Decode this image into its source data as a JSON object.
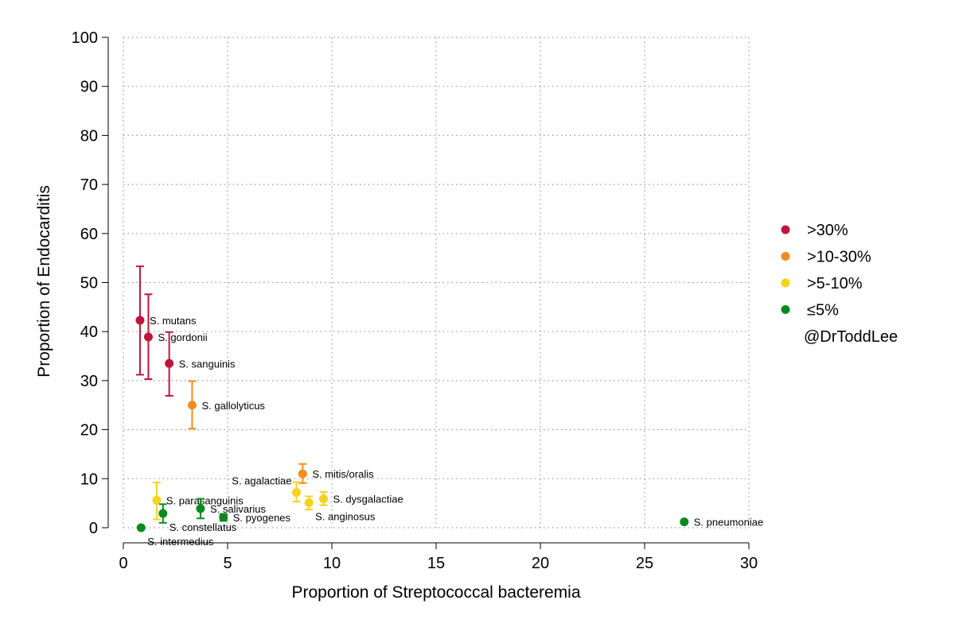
{
  "chart_data": {
    "type": "scatter",
    "title": "",
    "xlabel": "Proportion of Streptococcal bacteremia",
    "ylabel": "Proportion of Endocarditis",
    "xlim": [
      0,
      30
    ],
    "ylim": [
      0,
      100
    ],
    "xticks": [
      "0",
      "5",
      "10",
      "15",
      "20",
      "25",
      "30"
    ],
    "yticks": [
      "0",
      "10",
      "20",
      "30",
      "40",
      "50",
      "60",
      "70",
      "80",
      "90",
      "100"
    ],
    "grid": true,
    "legend": {
      "position": "right",
      "entries": [
        {
          "key": "gt30",
          "label": ">30%",
          "color": "#c0143c"
        },
        {
          "key": "10to30",
          "label": ">10-30%",
          "color": "#f28c1e"
        },
        {
          "key": "5to10",
          "label": ">5-10%",
          "color": "#f5d21e"
        },
        {
          "key": "le5",
          "label": "≤5%",
          "color": "#0a8a1e"
        }
      ],
      "note": "@DrToddLee"
    },
    "points": [
      {
        "label": "S. mutans",
        "x": 0.8,
        "y": 42.3,
        "lo": 31.2,
        "hi": 53.3,
        "group": "gt30",
        "label_side": "right"
      },
      {
        "label": "S. gordonii",
        "x": 1.2,
        "y": 38.9,
        "lo": 30.3,
        "hi": 47.6,
        "group": "gt30",
        "label_side": "right"
      },
      {
        "label": "S. sanguinis",
        "x": 2.2,
        "y": 33.5,
        "lo": 26.9,
        "hi": 39.9,
        "group": "gt30",
        "label_side": "right"
      },
      {
        "label": "S. gallolyticus",
        "x": 3.3,
        "y": 25.0,
        "lo": 20.2,
        "hi": 29.9,
        "group": "10to30",
        "label_side": "right"
      },
      {
        "label": "S. mitis/oralis",
        "x": 8.6,
        "y": 11.0,
        "lo": 9.1,
        "hi": 13.0,
        "group": "10to30",
        "label_side": "right"
      },
      {
        "label": "S. agalactiae",
        "x": 8.3,
        "y": 7.2,
        "lo": 5.3,
        "hi": 9.3,
        "group": "5to10",
        "label_side": "above-left"
      },
      {
        "label": "S. anginosus",
        "x": 8.9,
        "y": 5.1,
        "lo": 3.7,
        "hi": 6.4,
        "group": "5to10",
        "label_side": "below"
      },
      {
        "label": "S. dysgalactiae",
        "x": 9.6,
        "y": 5.9,
        "lo": 4.6,
        "hi": 7.3,
        "group": "5to10",
        "label_side": "right"
      },
      {
        "label": "S. parasanguinis",
        "x": 1.6,
        "y": 5.6,
        "lo": 1.7,
        "hi": 9.2,
        "group": "5to10",
        "label_side": "right"
      },
      {
        "label": "S. salivarius",
        "x": 3.7,
        "y": 3.9,
        "lo": 1.9,
        "hi": 5.9,
        "group": "le5",
        "label_side": "right"
      },
      {
        "label": "S. constellatus",
        "x": 1.9,
        "y": 2.9,
        "lo": 1.0,
        "hi": 4.8,
        "group": "le5",
        "label_side": "below"
      },
      {
        "label": "S. pyogenes",
        "x": 4.8,
        "y": 2.1,
        "lo": 1.4,
        "hi": 2.8,
        "group": "le5",
        "label_side": "right"
      },
      {
        "label": "S. intermedius",
        "x": 0.85,
        "y": 0.0,
        "lo": 0.0,
        "hi": 0.0,
        "group": "le5",
        "label_side": "below"
      },
      {
        "label": "S. pneumoniae",
        "x": 26.9,
        "y": 1.2,
        "lo": 1.0,
        "hi": 1.4,
        "group": "le5",
        "label_side": "right"
      }
    ]
  }
}
